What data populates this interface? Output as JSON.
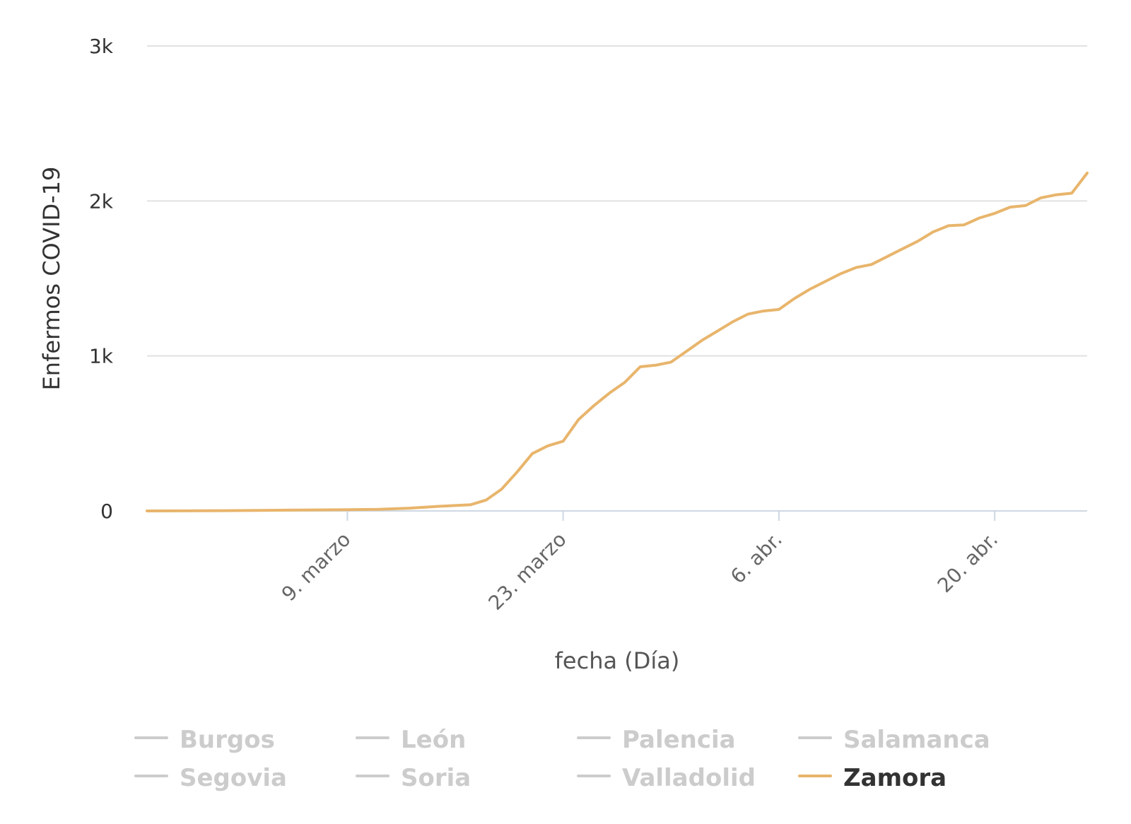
{
  "chart_data": {
    "type": "line",
    "title": "",
    "xlabel": "fecha (Día)",
    "ylabel": "Enfermos COVID-19",
    "x_axis_type": "datetime",
    "xlim": [
      "2020-02-25",
      "2020-04-26"
    ],
    "ylim": [
      0,
      3000
    ],
    "yticks": [
      0,
      1000,
      2000,
      3000
    ],
    "ytick_labels": [
      "0",
      "1k",
      "2k",
      "3k"
    ],
    "xticks": [
      "2020-03-09",
      "2020-03-23",
      "2020-04-06",
      "2020-04-20"
    ],
    "xtick_labels": [
      "9. marzo",
      "23. marzo",
      "6. abr.",
      "20. abr."
    ],
    "grid": true,
    "legend_placement": "bottom",
    "legend": [
      {
        "name": "Burgos",
        "visible": false
      },
      {
        "name": "León",
        "visible": false
      },
      {
        "name": "Palencia",
        "visible": false
      },
      {
        "name": "Salamanca",
        "visible": false
      },
      {
        "name": "Segovia",
        "visible": false
      },
      {
        "name": "Soria",
        "visible": false
      },
      {
        "name": "Valladolid",
        "visible": false
      },
      {
        "name": "Zamora",
        "visible": true
      }
    ],
    "series": [
      {
        "name": "Zamora",
        "color": "#e8b56c",
        "x": [
          "2020-02-25",
          "2020-03-01",
          "2020-03-05",
          "2020-03-09",
          "2020-03-11",
          "2020-03-13",
          "2020-03-15",
          "2020-03-17",
          "2020-03-18",
          "2020-03-19",
          "2020-03-20",
          "2020-03-21",
          "2020-03-22",
          "2020-03-23",
          "2020-03-24",
          "2020-03-25",
          "2020-03-26",
          "2020-03-27",
          "2020-03-28",
          "2020-03-29",
          "2020-03-30",
          "2020-03-31",
          "2020-04-01",
          "2020-04-02",
          "2020-04-03",
          "2020-04-04",
          "2020-04-05",
          "2020-04-06",
          "2020-04-07",
          "2020-04-08",
          "2020-04-09",
          "2020-04-10",
          "2020-04-11",
          "2020-04-12",
          "2020-04-13",
          "2020-04-14",
          "2020-04-15",
          "2020-04-16",
          "2020-04-17",
          "2020-04-18",
          "2020-04-19",
          "2020-04-20",
          "2020-04-21",
          "2020-04-22",
          "2020-04-23",
          "2020-04-24",
          "2020-04-25",
          "2020-04-26"
        ],
        "values": [
          0,
          2,
          5,
          8,
          10,
          18,
          30,
          40,
          70,
          140,
          250,
          370,
          420,
          450,
          590,
          680,
          760,
          830,
          930,
          940,
          960,
          1030,
          1100,
          1160,
          1220,
          1270,
          1290,
          1300,
          1370,
          1430,
          1480,
          1530,
          1570,
          1590,
          1640,
          1690,
          1740,
          1800,
          1840,
          1845,
          1890,
          1920,
          1960,
          1970,
          2020,
          2040,
          2050,
          2180
        ]
      }
    ]
  }
}
